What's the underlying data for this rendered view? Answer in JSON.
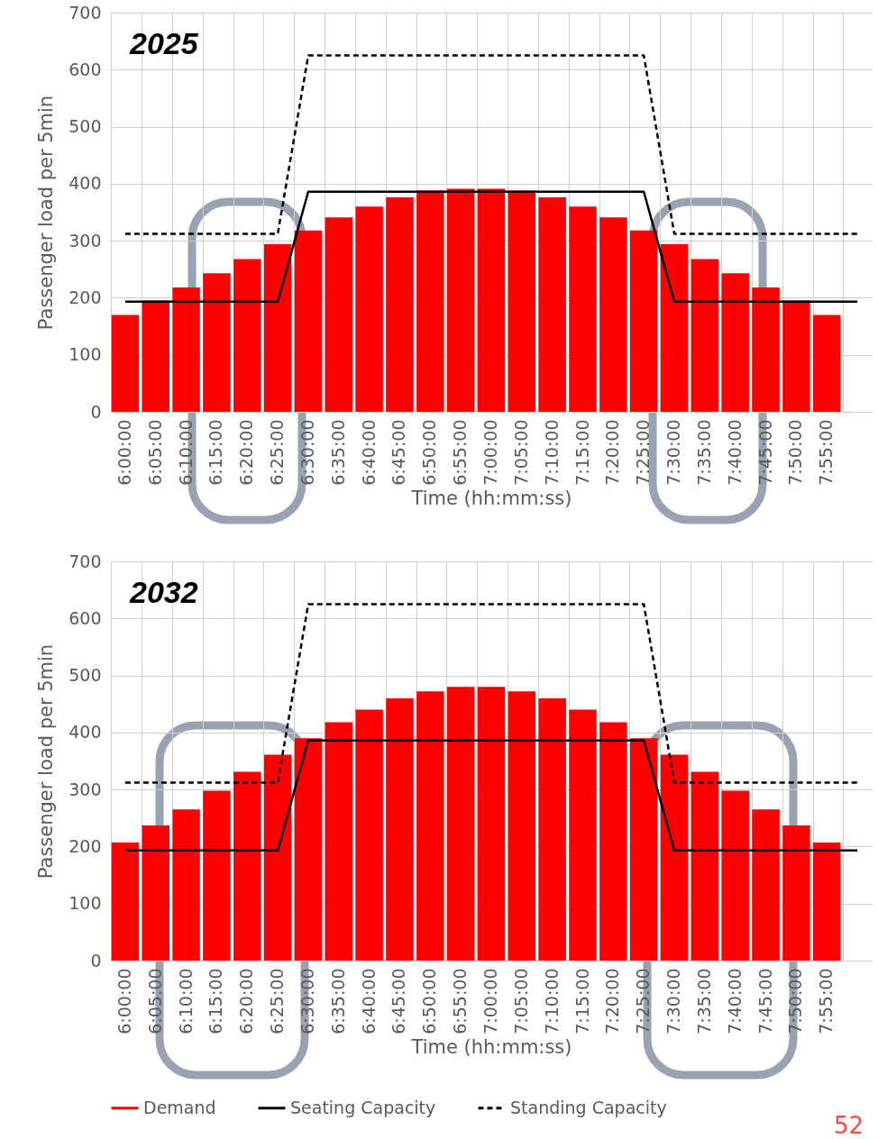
{
  "chart_data": [
    {
      "type": "bar",
      "title": "2025",
      "xlabel": "Time (hh:mm:ss)",
      "ylabel": "Passenger load per 5min",
      "categories": [
        "6:00:00",
        "6:05:00",
        "6:10:00",
        "6:15:00",
        "6:20:00",
        "6:25:00",
        "6:30:00",
        "6:35:00",
        "6:40:00",
        "6:45:00",
        "6:50:00",
        "6:55:00",
        "7:00:00",
        "7:05:00",
        "7:10:00",
        "7:15:00",
        "7:20:00",
        "7:25:00",
        "7:30:00",
        "7:35:00",
        "7:40:00",
        "7:45:00",
        "7:50:00",
        "7:55:00",
        null
      ],
      "ylim": [
        0,
        700
      ],
      "yticks": [
        0,
        100,
        200,
        300,
        400,
        500,
        600,
        700
      ],
      "grid": true,
      "legend": false,
      "series": [
        {
          "type": "bar",
          "color": "#ff0000",
          "values": [
            170,
            195,
            218,
            243,
            268,
            294,
            318,
            341,
            360,
            376,
            388,
            391,
            391,
            388,
            376,
            360,
            341,
            318,
            294,
            268,
            243,
            218,
            195,
            170,
            null
          ]
        },
        {
          "type": "line",
          "color": "#000000",
          "line_style": "solid",
          "values": [
            193,
            193,
            193,
            193,
            193,
            193,
            386,
            386,
            386,
            386,
            386,
            386,
            386,
            386,
            386,
            386,
            386,
            386,
            193,
            193,
            193,
            193,
            193,
            193,
            193
          ]
        },
        {
          "type": "line",
          "color": "#000000",
          "line_style": "dashed",
          "values": [
            312,
            312,
            312,
            312,
            312,
            312,
            625,
            625,
            625,
            625,
            625,
            625,
            625,
            625,
            625,
            625,
            625,
            625,
            312,
            312,
            312,
            312,
            312,
            312,
            312
          ]
        }
      ]
    },
    {
      "type": "bar",
      "title": "2032",
      "xlabel": "Time (hh:mm:ss)",
      "ylabel": "Passenger load per 5min",
      "categories": [
        "6:00:00",
        "6:05:00",
        "6:10:00",
        "6:15:00",
        "6:20:00",
        "6:25:00",
        "6:30:00",
        "6:35:00",
        "6:40:00",
        "6:45:00",
        "6:50:00",
        "6:55:00",
        "7:00:00",
        "7:05:00",
        "7:10:00",
        "7:15:00",
        "7:20:00",
        "7:25:00",
        "7:30:00",
        "7:35:00",
        "7:40:00",
        "7:45:00",
        "7:50:00",
        "7:55:00",
        null
      ],
      "ylim": [
        0,
        700
      ],
      "yticks": [
        0,
        100,
        200,
        300,
        400,
        500,
        600,
        700
      ],
      "grid": true,
      "legend": "bottom",
      "annotations": [
        "52"
      ],
      "series": [
        {
          "name": "Demand",
          "type": "bar",
          "color": "#ff0000",
          "values": [
            207,
            237,
            265,
            298,
            331,
            361,
            390,
            418,
            440,
            460,
            472,
            480,
            480,
            472,
            460,
            440,
            418,
            390,
            361,
            331,
            298,
            265,
            237,
            207,
            null
          ]
        },
        {
          "name": "Seating Capacity",
          "type": "line",
          "color": "#000000",
          "line_style": "solid",
          "values": [
            193,
            193,
            193,
            193,
            193,
            193,
            386,
            386,
            386,
            386,
            386,
            386,
            386,
            386,
            386,
            386,
            386,
            386,
            193,
            193,
            193,
            193,
            193,
            193,
            193
          ]
        },
        {
          "name": "Standing Capacity",
          "type": "line",
          "color": "#000000",
          "line_style": "dashed",
          "values": [
            312,
            312,
            312,
            312,
            312,
            312,
            625,
            625,
            625,
            625,
            625,
            625,
            625,
            625,
            625,
            625,
            625,
            625,
            312,
            312,
            312,
            312,
            312,
            312,
            312
          ]
        }
      ]
    }
  ]
}
